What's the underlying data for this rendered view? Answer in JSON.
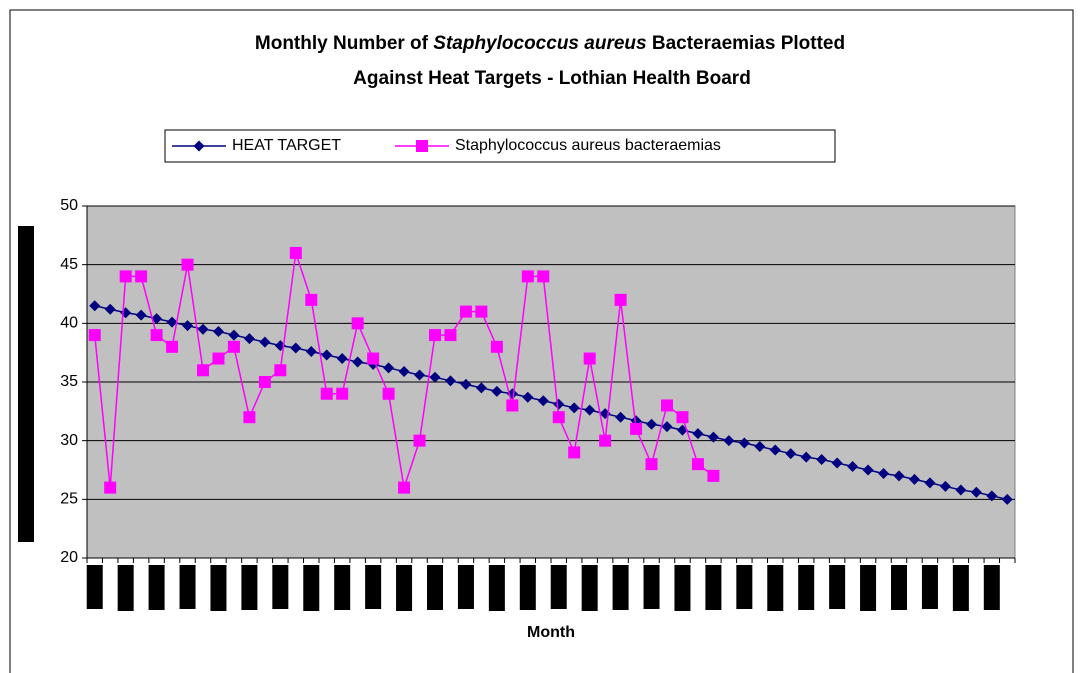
{
  "chart_data": {
    "type": "line",
    "title": [
      {
        "text": "Monthly Number of "
      },
      {
        "text": "Staphylococcus aureus",
        "italic": true
      },
      {
        "text": " Bacteraemias Plotted"
      },
      {
        "text": "Against Heat Targets - Lothian Health Board"
      }
    ],
    "x_label": "Month",
    "categories": [
      null,
      null,
      null,
      null,
      null,
      null,
      null,
      null,
      null,
      null,
      null,
      null,
      null,
      null,
      null,
      null,
      null,
      null,
      null,
      null,
      null,
      null,
      null,
      null,
      null,
      null,
      null,
      null,
      null,
      null,
      null,
      null,
      null,
      null,
      null,
      null,
      null,
      null,
      null,
      null,
      null,
      null,
      null,
      null,
      null,
      null,
      null,
      null,
      null,
      null,
      null,
      null,
      null,
      null,
      null,
      null,
      null,
      null,
      null,
      null
    ],
    "ylim": [
      20,
      50
    ],
    "yticks": [
      20,
      25,
      30,
      35,
      40,
      45,
      50
    ],
    "grid": true,
    "legend": "top",
    "series": [
      {
        "name": "HEAT TARGET",
        "color": "#000080",
        "marker": "diamond",
        "values": [
          41.5,
          41.2,
          40.9,
          40.7,
          40.4,
          40.1,
          39.8,
          39.5,
          39.3,
          39.0,
          38.7,
          38.4,
          38.1,
          37.9,
          37.6,
          37.3,
          37.0,
          36.7,
          36.5,
          36.2,
          35.9,
          35.6,
          35.4,
          35.1,
          34.8,
          34.5,
          34.2,
          34.0,
          33.7,
          33.4,
          33.1,
          32.8,
          32.6,
          32.3,
          32.0,
          31.7,
          31.4,
          31.2,
          30.9,
          30.6,
          30.3,
          30.0,
          29.8,
          29.5,
          29.2,
          28.9,
          28.6,
          28.4,
          28.1,
          27.8,
          27.5,
          27.2,
          27.0,
          26.7,
          26.4,
          26.1,
          25.8,
          25.6,
          25.3,
          25.0
        ]
      },
      {
        "name": "Staphylococcus aureus bacteraemias",
        "color": "#ff00ff",
        "marker": "square",
        "values": [
          39,
          26,
          44,
          44,
          39,
          38,
          45,
          36,
          37,
          38,
          32,
          35,
          36,
          46,
          42,
          34,
          34,
          40,
          37,
          34,
          26,
          30,
          39,
          39,
          41,
          41,
          38,
          33,
          44,
          44,
          32,
          29,
          37,
          30,
          42,
          31,
          28,
          33,
          32,
          28,
          27,
          null,
          null,
          null,
          null,
          null,
          null,
          null,
          null,
          null,
          null,
          null,
          null,
          null,
          null,
          null,
          null,
          null,
          null,
          null
        ]
      }
    ]
  }
}
